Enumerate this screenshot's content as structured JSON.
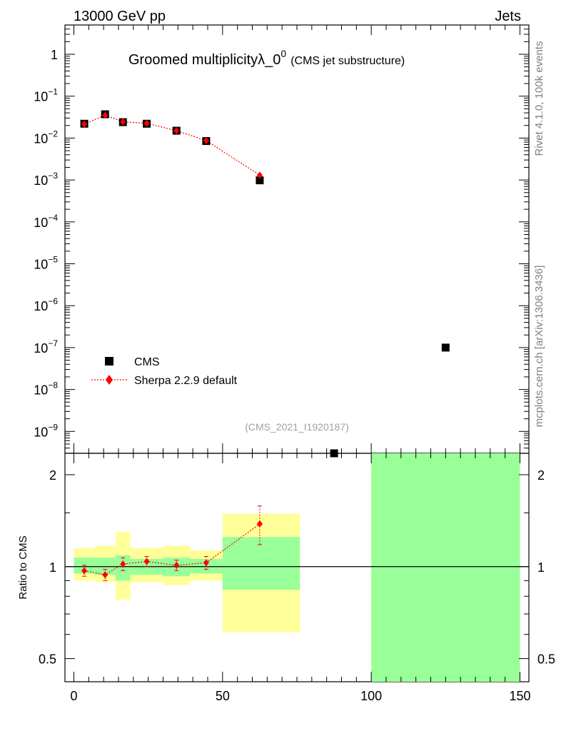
{
  "header": {
    "left": "13000 GeV pp",
    "right": "Jets"
  },
  "side_labels": {
    "rivet": "Rivet 4.1.0,  100k events",
    "mcplots": "mcplots.cern.ch [arXiv:1306.3436]"
  },
  "chart_data": [
    {
      "type": "scatter",
      "title": "Groomed multiplicityλ_0",
      "title_superscript": "0",
      "subtitle": "(CMS jet substructure)",
      "analysis_id": "(CMS_2021_I1920187)",
      "yscale": "log",
      "xlim": [
        -3,
        153
      ],
      "ylim": [
        3e-10,
        5
      ],
      "x_ticks": [
        "0",
        "50",
        "100",
        "150"
      ],
      "y_ticks": [
        "1",
        "10^-1",
        "10^-2",
        "10^-3",
        "10^-4",
        "10^-5",
        "10^-6",
        "10^-7",
        "10^-8",
        "10^-9"
      ],
      "legend": {
        "position": "bottom-left"
      },
      "series": [
        {
          "name": "CMS",
          "marker": "square",
          "color": "#000000",
          "x": [
            3.5,
            10.5,
            16.5,
            24.5,
            34.5,
            44.5,
            62.5,
            87.5,
            125
          ],
          "y": [
            0.022,
            0.037,
            0.024,
            0.022,
            0.015,
            0.0085,
            0.00098,
            3e-10,
            1e-07
          ]
        },
        {
          "name": "Sherpa 2.2.9 default",
          "marker": "diamond",
          "line": "dotted",
          "color": "#ff0000",
          "x": [
            3.5,
            10.5,
            16.5,
            24.5,
            34.5,
            44.5,
            62.5
          ],
          "y": [
            0.0215,
            0.035,
            0.0245,
            0.0225,
            0.015,
            0.0087,
            0.0013
          ]
        }
      ]
    },
    {
      "type": "scatter",
      "ylabel": "Ratio to CMS",
      "yscale": "log",
      "xlim": [
        -3,
        153
      ],
      "ylim": [
        0.42,
        2.35
      ],
      "x_ticks": [
        "0",
        "50",
        "100",
        "150"
      ],
      "y_ticks": [
        "0.5",
        "1",
        "2"
      ],
      "reference_line": 1,
      "colors": {
        "stat_band": "#99ff99",
        "total_band": "#ffff99",
        "mc": "#ff0000"
      },
      "bands": [
        {
          "x0": 0,
          "x1": 7,
          "stat": [
            0.95,
            1.07
          ],
          "total": [
            0.9,
            1.15
          ]
        },
        {
          "x0": 7,
          "x1": 14,
          "stat": [
            0.94,
            1.07
          ],
          "total": [
            0.89,
            1.17
          ]
        },
        {
          "x0": 14,
          "x1": 19,
          "stat": [
            0.9,
            1.09
          ],
          "total": [
            0.78,
            1.3
          ]
        },
        {
          "x0": 19,
          "x1": 30,
          "stat": [
            0.94,
            1.06
          ],
          "total": [
            0.89,
            1.15
          ]
        },
        {
          "x0": 30,
          "x1": 39,
          "stat": [
            0.93,
            1.07
          ],
          "total": [
            0.87,
            1.17
          ]
        },
        {
          "x0": 39,
          "x1": 50,
          "stat": [
            0.95,
            1.06
          ],
          "total": [
            0.9,
            1.13
          ]
        },
        {
          "x0": 50,
          "x1": 76,
          "stat": [
            0.84,
            1.25
          ],
          "total": [
            0.61,
            1.49
          ]
        },
        {
          "x0": 100,
          "x1": 150,
          "stat": [
            0.4,
            2.4
          ],
          "total": [
            0.4,
            2.4
          ]
        }
      ],
      "series": [
        {
          "name": "Sherpa 2.2.9 default",
          "x": [
            3.5,
            10.5,
            16.5,
            24.5,
            34.5,
            44.5,
            62.5
          ],
          "y": [
            0.97,
            0.94,
            1.02,
            1.04,
            1.01,
            1.03,
            1.38
          ],
          "err": [
            0.04,
            0.04,
            0.05,
            0.04,
            0.04,
            0.05,
            0.2
          ]
        }
      ]
    }
  ]
}
